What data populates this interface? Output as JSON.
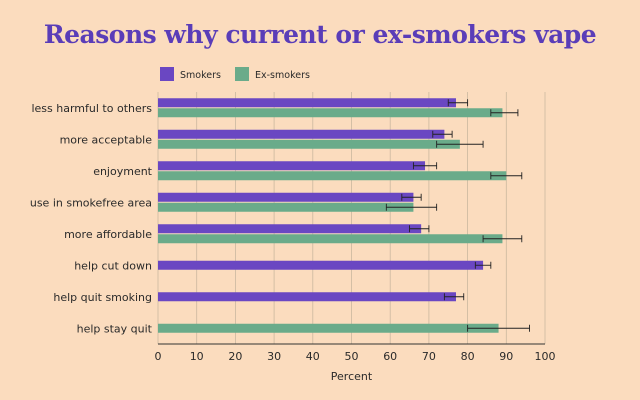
{
  "chart_data": {
    "type": "bar",
    "orientation": "horizontal",
    "title": "Reasons why current or ex-smokers vape",
    "xlabel": "Percent",
    "ylabel": "",
    "xlim": [
      0,
      100
    ],
    "xticks": [
      0,
      10,
      20,
      30,
      40,
      50,
      60,
      70,
      80,
      90,
      100
    ],
    "grid": true,
    "legend_position": "top-left",
    "categories": [
      "less harmful to others",
      "more acceptable",
      "enjoyment",
      "use in smokefree area",
      "more affordable",
      "help cut down",
      "help quit smoking",
      "help stay quit"
    ],
    "series": [
      {
        "name": "Smokers",
        "color": "#6a47c2",
        "values": [
          77,
          74,
          69,
          66,
          68,
          84,
          77,
          null
        ],
        "error_low": [
          75,
          71,
          66,
          63,
          65,
          82,
          74,
          null
        ],
        "error_high": [
          80,
          76,
          72,
          68,
          70,
          86,
          79,
          null
        ]
      },
      {
        "name": "Ex-smokers",
        "color": "#6aab8a",
        "values": [
          89,
          78,
          90,
          66,
          89,
          null,
          null,
          88
        ],
        "error_low": [
          86,
          72,
          86,
          59,
          84,
          null,
          null,
          80
        ],
        "error_high": [
          93,
          84,
          94,
          72,
          94,
          null,
          null,
          96
        ]
      }
    ]
  }
}
